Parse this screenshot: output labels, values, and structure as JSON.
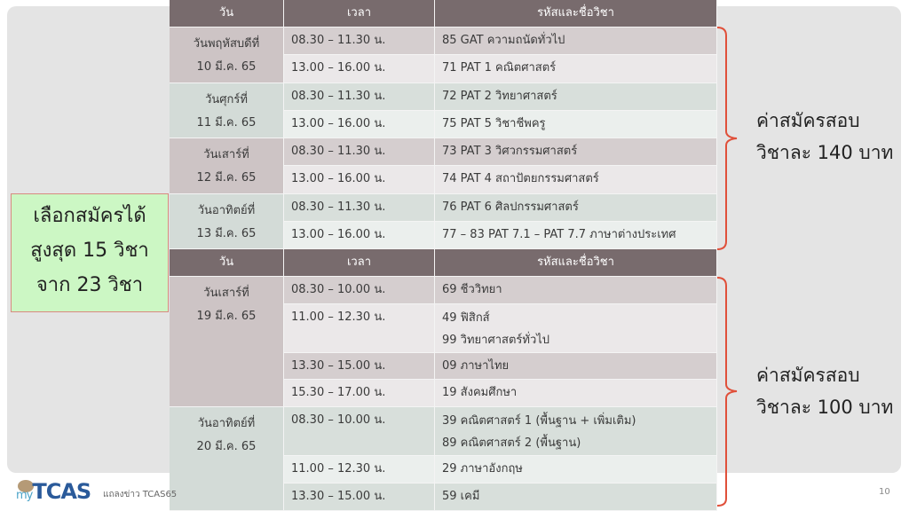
{
  "table1": {
    "headers": [
      "วัน",
      "เวลา",
      "รหัสและชื่อวิชา"
    ],
    "days": [
      {
        "l1": "วันพฤหัสบดีที่",
        "l2": "10 มี.ค. 65"
      },
      {
        "l1": "วันศุกร์ที่",
        "l2": "11 มี.ค. 65"
      },
      {
        "l1": "วันเสาร์ที่",
        "l2": "12 มี.ค. 65"
      },
      {
        "l1": "วันอาทิตย์ที่",
        "l2": "13 มี.ค. 65"
      }
    ],
    "rows": [
      {
        "time": "08.30 – 11.30 น.",
        "subject": "85 GAT ความถนัดทั่วไป"
      },
      {
        "time": "13.00 – 16.00 น.",
        "subject": "71 PAT 1 คณิตศาสตร์"
      },
      {
        "time": "08.30 – 11.30 น.",
        "subject": "72 PAT 2 วิทยาศาสตร์"
      },
      {
        "time": "13.00 – 16.00 น.",
        "subject": "75 PAT 5 วิชาชีพครู"
      },
      {
        "time": "08.30 – 11.30 น.",
        "subject": "73 PAT 3 วิศวกรรมศาสตร์"
      },
      {
        "time": "13.00 – 16.00 น.",
        "subject": "74 PAT 4 สถาปัตยกรรมศาสตร์"
      },
      {
        "time": "08.30 – 11.30 น.",
        "subject": "76 PAT 6 ศิลปกรรมศาสตร์"
      },
      {
        "time": "13.00 – 16.00 น.",
        "subject": "77 – 83 PAT 7.1 – PAT 7.7 ภาษาต่างประเทศ"
      }
    ]
  },
  "table2": {
    "headers": [
      "วัน",
      "เวลา",
      "รหัสและชื่อวิชา"
    ],
    "days": [
      {
        "l1": "วันเสาร์ที่",
        "l2": "19 มี.ค. 65"
      },
      {
        "l1": "วันอาทิตย์ที่",
        "l2": "20 มี.ค. 65"
      }
    ],
    "rows": [
      {
        "time": "08.30 – 10.00 น.",
        "s1": "69 ชีววิทยา"
      },
      {
        "time": "11.00 – 12.30 น.",
        "s1": "49 ฟิสิกส์",
        "s2": "99 วิทยาศาสตร์ทั่วไป"
      },
      {
        "time": "13.30 – 15.00 น.",
        "s1": "09 ภาษาไทย"
      },
      {
        "time": "15.30 – 17.00 น.",
        "s1": "19 สังคมศึกษา"
      },
      {
        "time": "08.30 – 10.00 น.",
        "s1": "39 คณิตศาสตร์ 1 (พื้นฐาน + เพิ่มเติม)",
        "s2": "89 คณิตศาสตร์ 2 (พื้นฐาน)"
      },
      {
        "time": "11.00 – 12.30 น.",
        "s1": "29 ภาษาอังกฤษ"
      },
      {
        "time": "13.30 – 15.00 น.",
        "s1": "59 เคมี"
      }
    ]
  },
  "left_box": {
    "l1": "เลือกสมัครได้",
    "l2": "สูงสุด 15 วิชา",
    "l3": "จาก 23 วิชา"
  },
  "fee1": {
    "l1": "ค่าสมัครสอบ",
    "l2": "วิชาละ 140 บาท"
  },
  "fee2": {
    "l1": "ค่าสมัครสอบ",
    "l2": "วิชาละ 100 บาท"
  },
  "footer": {
    "logo_my": "my",
    "logo_tcas": "TCAS",
    "text": "แถลงข่าว TCAS65",
    "page": "10"
  },
  "colors": {
    "header": "#786b6d",
    "brace": "#e0503a",
    "left_box_bg": "#ccf7c4"
  }
}
